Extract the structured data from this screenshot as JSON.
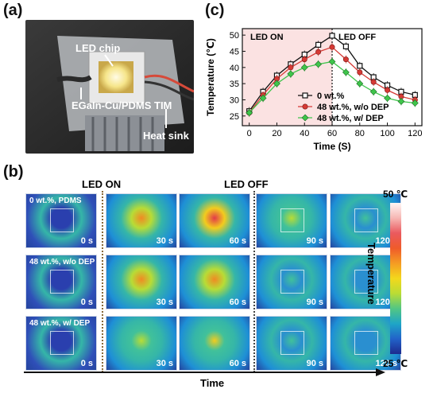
{
  "panels": {
    "a": "(a)",
    "b": "(b)",
    "c": "(c)"
  },
  "photo": {
    "led_chip": "LED chip",
    "tim": "EGaIn-Cu/PDMS TIM",
    "heat_sink": "Heat sink"
  },
  "chart_data": {
    "type": "line",
    "xlabel": "Time (S)",
    "ylabel": "Temperature (℃)",
    "xlim": [
      -5,
      125
    ],
    "ylim": [
      22,
      52
    ],
    "xticks": [
      0,
      20,
      40,
      60,
      80,
      100,
      120
    ],
    "yticks": [
      25,
      30,
      35,
      40,
      45,
      50
    ],
    "x": [
      0,
      10,
      20,
      30,
      40,
      50,
      60,
      70,
      80,
      90,
      100,
      110,
      120
    ],
    "annotations": {
      "on": "LED ON",
      "off": "LED OFF",
      "split_x": 60
    },
    "legend_position": "bottom-left",
    "series": [
      {
        "name": "0 wt.%",
        "color": "#111111",
        "marker": "square-open",
        "values": [
          26.5,
          32.5,
          37.5,
          41.0,
          44.0,
          47.0,
          49.8,
          46.5,
          40.5,
          37.0,
          34.5,
          32.5,
          31.5
        ]
      },
      {
        "name": "48 wt.%, w/o DEP",
        "color": "#d63a35",
        "marker": "circle",
        "values": [
          26.0,
          31.5,
          36.5,
          40.0,
          42.5,
          44.8,
          46.3,
          42.5,
          38.5,
          35.5,
          33.0,
          31.0,
          30.0
        ]
      },
      {
        "name": "48 wt.%, w/ DEP",
        "color": "#3fc54b",
        "marker": "diamond",
        "values": [
          26.0,
          30.5,
          35.0,
          38.0,
          40.0,
          41.0,
          41.8,
          38.5,
          35.0,
          32.5,
          30.5,
          29.5,
          29.0
        ]
      }
    ]
  },
  "heatmaps": {
    "led_on": "LED ON",
    "led_off": "LED OFF",
    "times": [
      "0 s",
      "30 s",
      "60 s",
      "90 s",
      "120 s"
    ],
    "rows": [
      {
        "label": "0 wt.%, PDMS",
        "intensity": [
          0.05,
          0.85,
          1.0,
          0.45,
          0.25
        ]
      },
      {
        "label": "48 wt.%, w/o DEP",
        "intensity": [
          0.05,
          0.75,
          0.9,
          0.35,
          0.2
        ]
      },
      {
        "label": "48 wt.%, w/ DEP",
        "intensity": [
          0.05,
          0.55,
          0.6,
          0.3,
          0.18
        ]
      }
    ],
    "axis_label": "Time",
    "colorbar": {
      "max": "50 ℃",
      "min": "25 ℃",
      "title": "Temperature"
    }
  }
}
